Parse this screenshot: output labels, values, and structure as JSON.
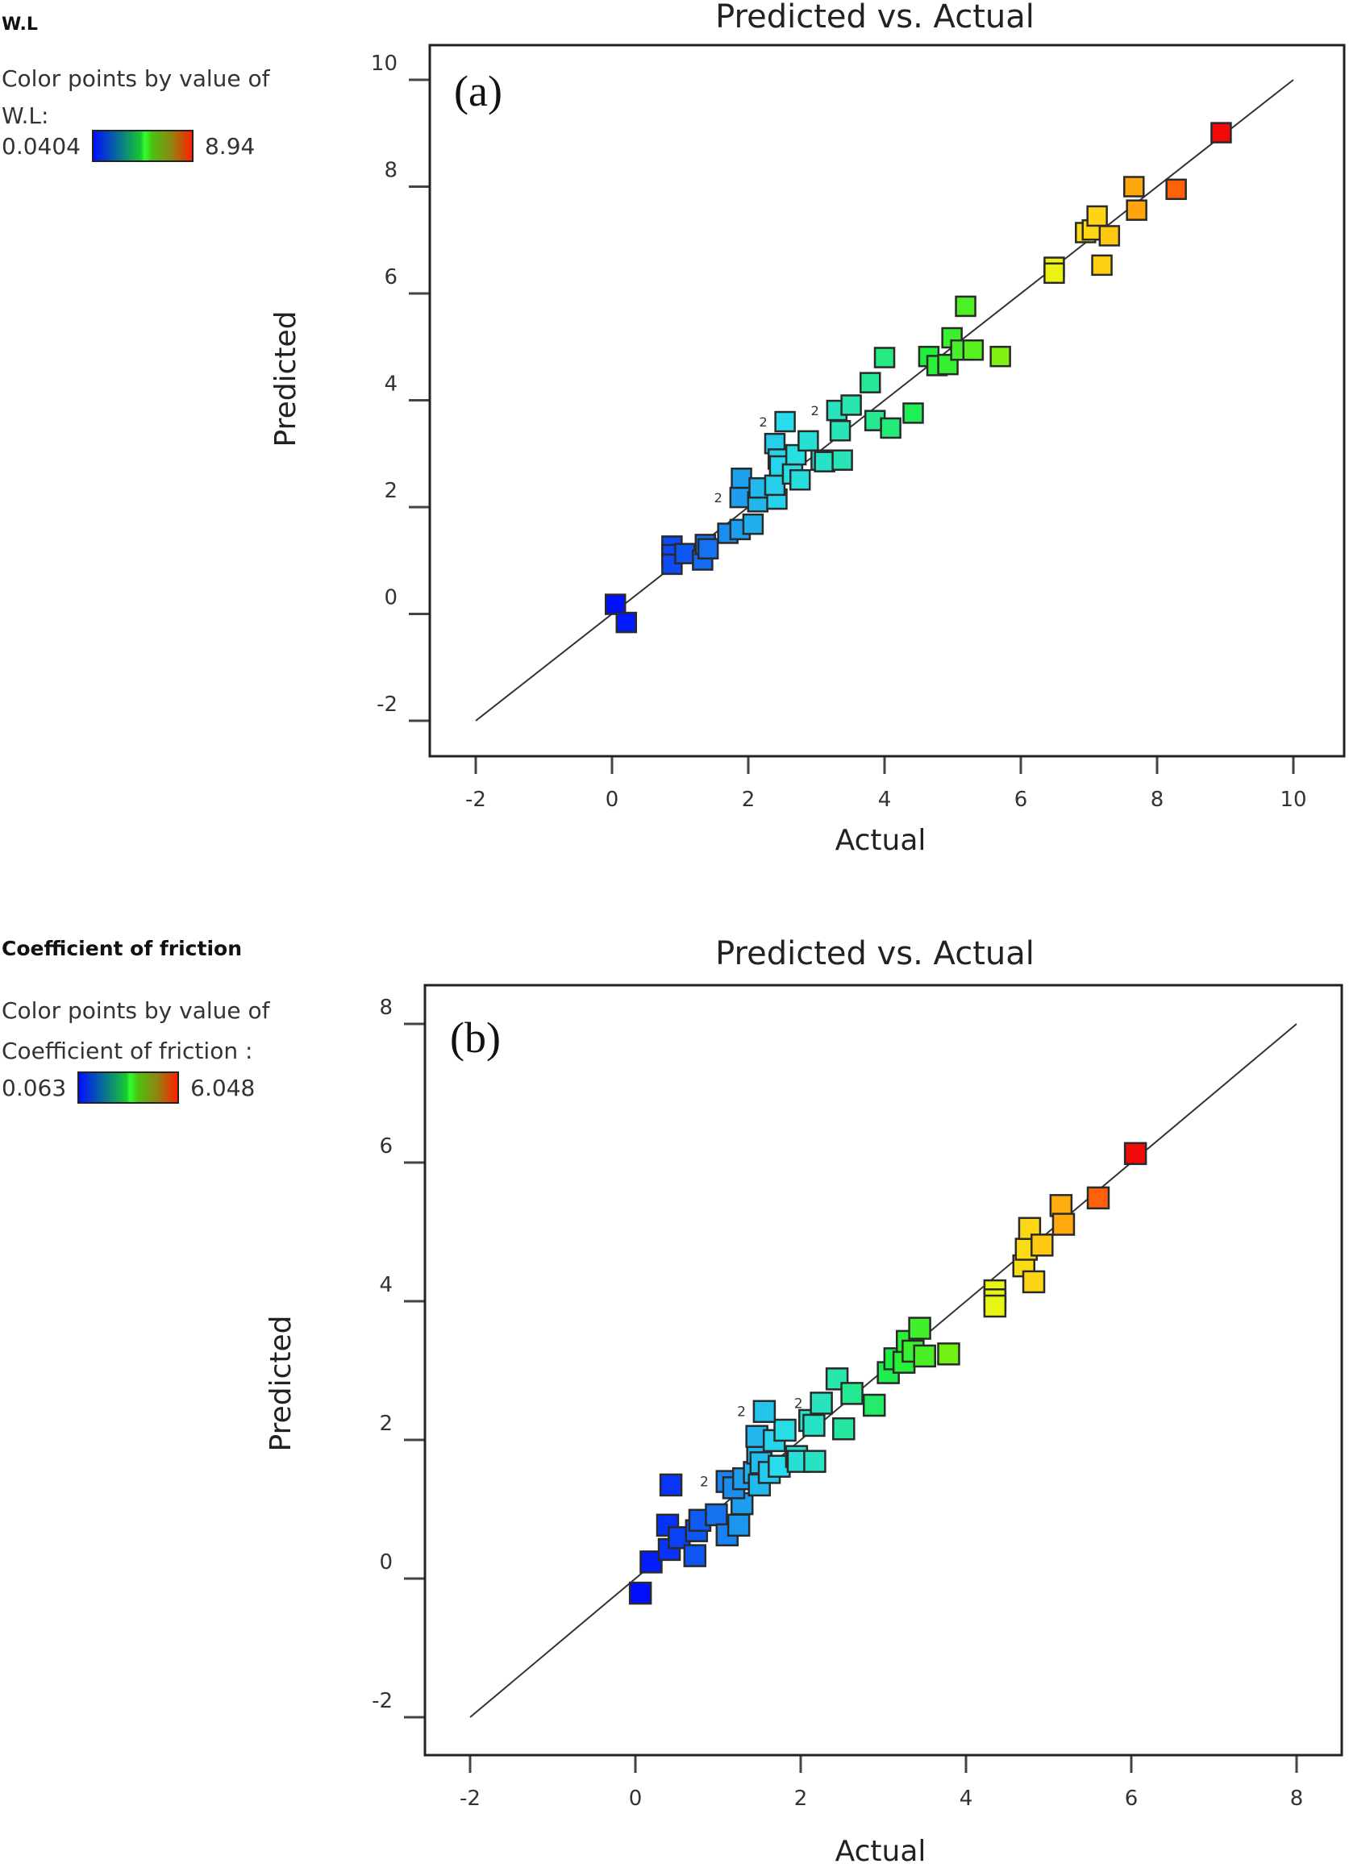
{
  "chart_data": [
    {
      "type": "scatter",
      "panel": "(a)",
      "title": "Predicted vs. Actual",
      "xlabel": "Actual",
      "ylabel": "Predicted",
      "xlim": [
        -2.6,
        10.7
      ],
      "ylim": [
        -2.7,
        10.7
      ],
      "xticks": [
        -2,
        0,
        2,
        4,
        6,
        8,
        10
      ],
      "yticks": [
        -2,
        0,
        2,
        4,
        6,
        8,
        10
      ],
      "reference_line": {
        "from": [
          -2,
          -2
        ],
        "to": [
          10,
          10
        ]
      },
      "legend": {
        "heading": "W.L",
        "line1": "Color points by value of",
        "line2": "W.L:",
        "min_label": "0.0404",
        "max_label": "8.94",
        "min": 0.0404,
        "max": 8.94,
        "placement": "top-left"
      },
      "replicate_labels": [
        {
          "text": "2",
          "x": 1.88,
          "y": 2.18
        },
        {
          "text": "2",
          "x": 2.54,
          "y": 3.6
        },
        {
          "text": "2",
          "x": 3.3,
          "y": 3.81
        }
      ],
      "points": [
        [
          0.05,
          0.18
        ],
        [
          0.21,
          -0.16
        ],
        [
          0.88,
          1.27
        ],
        [
          0.88,
          1.11
        ],
        [
          0.88,
          0.93
        ],
        [
          1.07,
          1.13
        ],
        [
          1.33,
          1.01
        ],
        [
          1.37,
          1.3
        ],
        [
          1.41,
          1.22
        ],
        [
          1.7,
          1.51
        ],
        [
          1.88,
          1.58
        ],
        [
          2.07,
          1.68
        ],
        [
          1.9,
          2.54
        ],
        [
          1.88,
          2.18
        ],
        [
          2.14,
          2.1
        ],
        [
          2.16,
          2.36
        ],
        [
          2.42,
          2.15
        ],
        [
          2.39,
          2.41
        ],
        [
          2.39,
          3.19
        ],
        [
          2.44,
          2.9
        ],
        [
          2.46,
          2.77
        ],
        [
          2.54,
          3.6
        ],
        [
          2.65,
          2.62
        ],
        [
          2.7,
          2.98
        ],
        [
          2.76,
          2.51
        ],
        [
          2.88,
          3.24
        ],
        [
          3.07,
          2.88
        ],
        [
          3.12,
          2.85
        ],
        [
          3.38,
          2.88
        ],
        [
          3.3,
          3.81
        ],
        [
          3.51,
          3.91
        ],
        [
          3.35,
          3.43
        ],
        [
          3.79,
          4.33
        ],
        [
          3.86,
          3.62
        ],
        [
          4.0,
          4.8
        ],
        [
          4.09,
          3.48
        ],
        [
          4.42,
          3.76
        ],
        [
          4.65,
          4.82
        ],
        [
          4.77,
          4.65
        ],
        [
          4.93,
          4.67
        ],
        [
          4.99,
          5.17
        ],
        [
          5.12,
          4.94
        ],
        [
          5.3,
          4.94
        ],
        [
          5.19,
          5.76
        ],
        [
          5.7,
          4.82
        ],
        [
          6.49,
          6.49
        ],
        [
          6.49,
          6.38
        ],
        [
          6.95,
          7.14
        ],
        [
          7.05,
          7.19
        ],
        [
          7.12,
          7.45
        ],
        [
          7.3,
          7.08
        ],
        [
          7.19,
          6.53
        ],
        [
          7.66,
          8.0
        ],
        [
          7.7,
          7.56
        ],
        [
          8.28,
          7.95
        ],
        [
          8.94,
          9.01
        ]
      ]
    },
    {
      "type": "scatter",
      "panel": "(b)",
      "title": "Predicted vs. Actual",
      "xlabel": "Actual",
      "ylabel": "Predicted",
      "xlim": [
        -2.55,
        8.55
      ],
      "ylim": [
        -2.55,
        8.55
      ],
      "xticks": [
        -2,
        0,
        2,
        4,
        6,
        8
      ],
      "yticks": [
        -2,
        0,
        2,
        4,
        6,
        8
      ],
      "reference_line": {
        "from": [
          -2,
          -2
        ],
        "to": [
          8,
          8
        ]
      },
      "legend": {
        "heading": "Coefficient of friction",
        "line1": "Color points by value of",
        "line2": "Coefficient of friction :",
        "min_label": "0.063",
        "max_label": "6.048",
        "min": 0.063,
        "max": 6.048,
        "placement": "top-left"
      },
      "replicate_labels": [
        {
          "text": "2",
          "x": 1.11,
          "y": 1.4
        },
        {
          "text": "2",
          "x": 1.56,
          "y": 2.41
        },
        {
          "text": "2",
          "x": 2.25,
          "y": 2.53
        }
      ],
      "points": [
        [
          0.06,
          -0.21
        ],
        [
          0.19,
          0.24
        ],
        [
          0.43,
          1.35
        ],
        [
          0.39,
          0.77
        ],
        [
          0.41,
          0.42
        ],
        [
          0.53,
          0.59
        ],
        [
          0.72,
          0.33
        ],
        [
          0.74,
          0.69
        ],
        [
          0.78,
          0.84
        ],
        [
          0.98,
          0.92
        ],
        [
          1.11,
          0.63
        ],
        [
          1.25,
          0.77
        ],
        [
          1.29,
          1.08
        ],
        [
          1.11,
          1.4
        ],
        [
          1.19,
          1.31
        ],
        [
          1.31,
          1.44
        ],
        [
          1.44,
          1.53
        ],
        [
          1.5,
          1.35
        ],
        [
          1.48,
          1.81
        ],
        [
          1.47,
          2.05
        ],
        [
          1.52,
          1.67
        ],
        [
          1.62,
          1.53
        ],
        [
          1.68,
          1.99
        ],
        [
          1.74,
          1.62
        ],
        [
          1.81,
          2.14
        ],
        [
          1.56,
          2.41
        ],
        [
          1.95,
          1.76
        ],
        [
          1.97,
          1.69
        ],
        [
          2.17,
          1.69
        ],
        [
          2.11,
          2.28
        ],
        [
          2.16,
          2.21
        ],
        [
          2.25,
          2.53
        ],
        [
          2.44,
          2.88
        ],
        [
          2.52,
          2.16
        ],
        [
          2.62,
          2.67
        ],
        [
          2.89,
          2.5
        ],
        [
          3.06,
          2.97
        ],
        [
          3.14,
          3.17
        ],
        [
          3.25,
          3.12
        ],
        [
          3.29,
          3.42
        ],
        [
          3.36,
          3.28
        ],
        [
          3.44,
          3.61
        ],
        [
          3.5,
          3.21
        ],
        [
          3.79,
          3.24
        ],
        [
          4.35,
          4.15
        ],
        [
          4.35,
          4.02
        ],
        [
          4.35,
          3.93
        ],
        [
          4.7,
          4.51
        ],
        [
          4.73,
          4.75
        ],
        [
          4.77,
          5.05
        ],
        [
          4.82,
          4.28
        ],
        [
          4.92,
          4.81
        ],
        [
          5.15,
          5.38
        ],
        [
          5.18,
          5.11
        ],
        [
          5.6,
          5.49
        ],
        [
          6.05,
          6.13
        ]
      ]
    }
  ]
}
